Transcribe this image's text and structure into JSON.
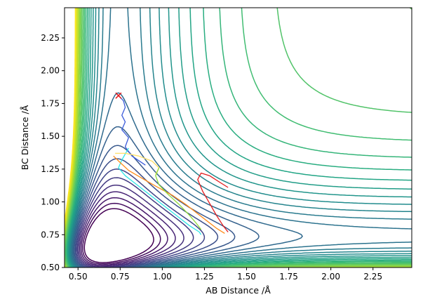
{
  "chart_data": {
    "type": "contour",
    "title": "",
    "xlabel": "AB Distance /Å",
    "ylabel": "BC Distance /Å",
    "xlim": [
      0.42,
      2.48
    ],
    "ylim": [
      0.5,
      2.48
    ],
    "x_ticks": [
      0.5,
      0.75,
      1.0,
      1.25,
      1.5,
      1.75,
      2.0,
      2.25
    ],
    "x_tick_labels": [
      "0.50",
      "0.75",
      "1.00",
      "1.25",
      "1.50",
      "1.75",
      "2.00",
      "2.25"
    ],
    "y_ticks": [
      0.5,
      0.75,
      1.0,
      1.25,
      1.5,
      1.75,
      2.0,
      2.25
    ],
    "y_tick_labels": [
      "0.50",
      "0.75",
      "1.00",
      "1.25",
      "1.50",
      "1.75",
      "2.00",
      "2.25"
    ],
    "grid": false,
    "legend": "none",
    "colormap": "viridis",
    "contour_levels": 30,
    "start_marker": {
      "x": 0.74,
      "y": 1.81,
      "symbol": "x",
      "color": "#e41a1c"
    },
    "trajectories": [
      {
        "color": "#3b5bdb",
        "points": [
          [
            0.74,
            1.81
          ],
          [
            0.77,
            1.77
          ],
          [
            0.78,
            1.72
          ],
          [
            0.76,
            1.66
          ],
          [
            0.78,
            1.61
          ],
          [
            0.76,
            1.55
          ],
          [
            0.8,
            1.49
          ],
          [
            0.78,
            1.42
          ],
          [
            0.82,
            1.35
          ],
          [
            0.9,
            1.28
          ]
        ]
      },
      {
        "color": "#2ee6e6",
        "points": [
          [
            0.8,
            1.41
          ],
          [
            0.76,
            1.32
          ],
          [
            0.74,
            1.26
          ],
          [
            0.78,
            1.2
          ],
          [
            0.86,
            1.12
          ],
          [
            0.94,
            1.04
          ],
          [
            1.02,
            0.96
          ],
          [
            1.1,
            0.88
          ],
          [
            1.16,
            0.82
          ],
          [
            1.22,
            0.77
          ],
          [
            1.23,
            0.75
          ]
        ]
      },
      {
        "color": "#ff8c1a",
        "points": [
          [
            0.71,
            1.35
          ],
          [
            0.75,
            1.3
          ],
          [
            0.8,
            1.24
          ],
          [
            0.88,
            1.18
          ],
          [
            0.96,
            1.12
          ],
          [
            1.06,
            1.05
          ],
          [
            1.14,
            0.98
          ],
          [
            1.2,
            0.92
          ],
          [
            1.26,
            0.86
          ],
          [
            1.32,
            0.8
          ],
          [
            1.37,
            0.76
          ]
        ]
      },
      {
        "color": "#ffe066",
        "points": [
          [
            0.72,
            1.37
          ],
          [
            0.78,
            1.37
          ],
          [
            0.86,
            1.35
          ],
          [
            0.94,
            1.31
          ],
          [
            0.98,
            1.26
          ],
          [
            0.96,
            1.21
          ]
        ]
      },
      {
        "color": "#8fdc3a",
        "points": [
          [
            0.98,
            1.26
          ],
          [
            0.96,
            1.2
          ],
          [
            0.98,
            1.13
          ],
          [
            1.04,
            1.05
          ],
          [
            1.1,
            0.98
          ],
          [
            1.16,
            0.9
          ],
          [
            1.2,
            0.84
          ],
          [
            1.23,
            0.79
          ]
        ]
      },
      {
        "color": "#e41a1c",
        "points": [
          [
            1.39,
            1.11
          ],
          [
            1.34,
            1.15
          ],
          [
            1.28,
            1.2
          ],
          [
            1.23,
            1.22
          ],
          [
            1.21,
            1.17
          ],
          [
            1.24,
            1.08
          ],
          [
            1.28,
            0.99
          ],
          [
            1.32,
            0.9
          ],
          [
            1.36,
            0.82
          ],
          [
            1.39,
            0.77
          ]
        ]
      }
    ]
  }
}
